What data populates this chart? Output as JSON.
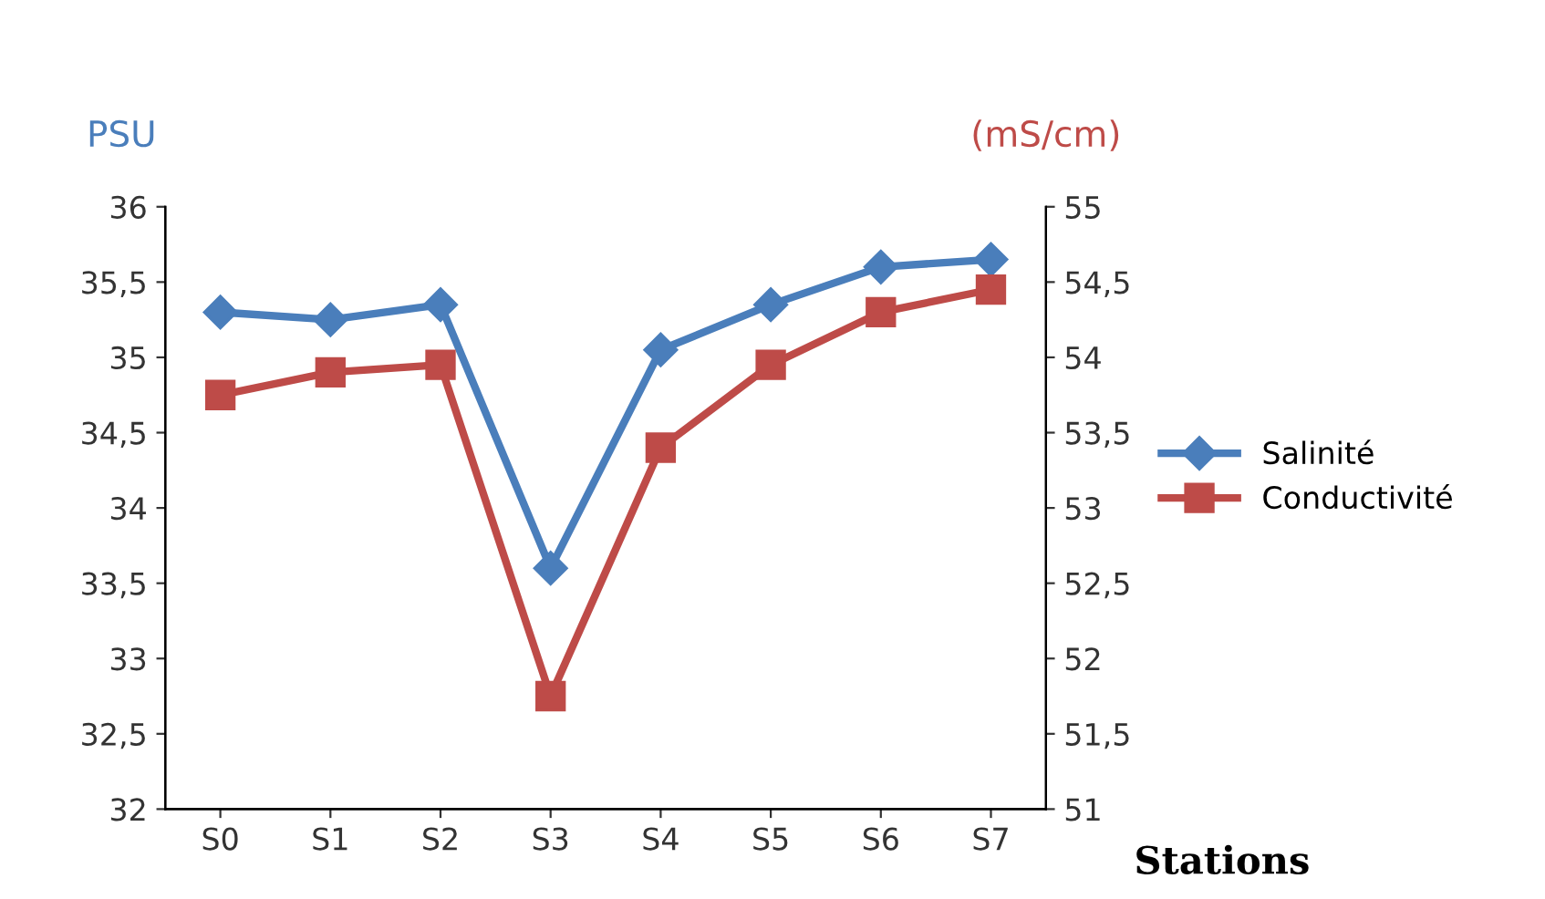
{
  "chart_data": {
    "type": "line",
    "categories": [
      "S0",
      "S1",
      "S2",
      "S3",
      "S4",
      "S5",
      "S6",
      "S7"
    ],
    "series": [
      {
        "name": "Salinité",
        "color": "#4a7ebb",
        "marker": "diamond",
        "values": [
          35.3,
          35.25,
          35.35,
          33.6,
          35.05,
          35.35,
          35.6,
          35.65
        ]
      },
      {
        "name": "Conductivité",
        "color": "#be4b48",
        "marker": "square",
        "axis": "y2",
        "values": [
          53.75,
          53.9,
          53.95,
          51.75,
          53.4,
          53.95,
          54.3,
          54.45
        ]
      }
    ],
    "ylabel": "PSU",
    "y2label": "(mS/cm)",
    "xlabel": "Stations",
    "ylim": [
      32,
      36
    ],
    "yticks": [
      32,
      {
        "value": 32.5,
        "label": "32,5"
      },
      33,
      {
        "value": 33.5,
        "label": "33,5"
      },
      34,
      {
        "value": 34.5,
        "label": "34,5"
      },
      35,
      {
        "value": 35.5,
        "label": "35,5"
      },
      36
    ],
    "y2lim": [
      51,
      55
    ],
    "y2ticks": [
      51,
      {
        "value": 51.5,
        "label": "51,5"
      },
      52,
      {
        "value": 52.5,
        "label": "52,5"
      },
      53,
      {
        "value": 53.5,
        "label": "53,5"
      },
      54,
      {
        "value": 54.5,
        "label": "54,5"
      },
      55
    ],
    "legend": "right",
    "grid": false
  }
}
